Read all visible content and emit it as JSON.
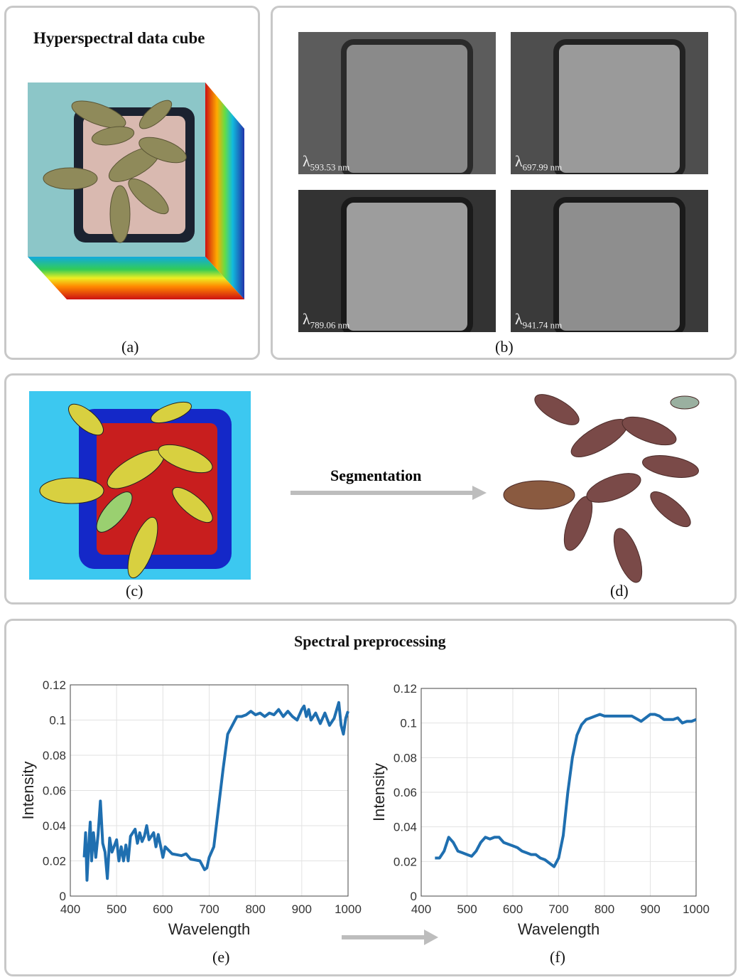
{
  "panel_a": {
    "title": "Hyperspectral data cube",
    "caption": "(a)"
  },
  "panel_b": {
    "caption": "(b)",
    "bands": [
      {
        "symbol": "λ",
        "sub": "593.53 nm"
      },
      {
        "symbol": "λ",
        "sub": "697.99 nm"
      },
      {
        "symbol": "λ",
        "sub": "789.06 nm"
      },
      {
        "symbol": "λ",
        "sub": "941.74 nm"
      }
    ]
  },
  "panel_cd": {
    "arrow_label": "Segmentation",
    "caption_c": "(c)",
    "caption_d": "(d)"
  },
  "panel_ef": {
    "title": "Spectral preprocessing",
    "caption_e": "(e)",
    "caption_f": "(f)"
  },
  "colors": {
    "line": "#1f6fb0",
    "arrow": "#bdbdbd"
  },
  "chart_data": [
    {
      "type": "line",
      "id": "e",
      "xlabel": "Wavelength",
      "ylabel": "Intensity",
      "xlim": [
        400,
        1000
      ],
      "ylim": [
        0,
        0.12
      ],
      "grid": true,
      "xticks": [
        "400",
        "500",
        "600",
        "700",
        "800",
        "900",
        "1000"
      ],
      "yticks": [
        "0",
        "0.02",
        "0.04",
        "0.06",
        "0.08",
        "0.1",
        "0.12"
      ],
      "x": [
        430,
        433,
        436,
        440,
        443,
        446,
        450,
        455,
        460,
        465,
        470,
        475,
        480,
        485,
        490,
        500,
        505,
        510,
        515,
        520,
        525,
        530,
        540,
        545,
        550,
        555,
        560,
        565,
        570,
        580,
        585,
        590,
        600,
        605,
        620,
        640,
        650,
        660,
        680,
        690,
        695,
        700,
        710,
        720,
        730,
        740,
        750,
        760,
        770,
        780,
        790,
        800,
        810,
        820,
        830,
        840,
        850,
        860,
        870,
        880,
        890,
        900,
        905,
        910,
        915,
        920,
        930,
        940,
        950,
        960,
        970,
        980,
        985,
        990,
        995,
        1000
      ],
      "y": [
        0.022,
        0.036,
        0.009,
        0.03,
        0.042,
        0.02,
        0.036,
        0.022,
        0.035,
        0.054,
        0.03,
        0.025,
        0.01,
        0.033,
        0.025,
        0.032,
        0.02,
        0.028,
        0.02,
        0.029,
        0.02,
        0.034,
        0.038,
        0.03,
        0.036,
        0.031,
        0.034,
        0.04,
        0.032,
        0.036,
        0.028,
        0.035,
        0.022,
        0.028,
        0.024,
        0.023,
        0.024,
        0.021,
        0.02,
        0.015,
        0.016,
        0.022,
        0.028,
        0.05,
        0.072,
        0.092,
        0.097,
        0.102,
        0.102,
        0.103,
        0.105,
        0.103,
        0.104,
        0.102,
        0.104,
        0.103,
        0.106,
        0.102,
        0.105,
        0.102,
        0.1,
        0.106,
        0.108,
        0.102,
        0.106,
        0.1,
        0.104,
        0.098,
        0.104,
        0.097,
        0.101,
        0.11,
        0.097,
        0.092,
        0.101,
        0.105
      ]
    },
    {
      "type": "line",
      "id": "f",
      "xlabel": "Wavelength",
      "ylabel": "Intensity",
      "xlim": [
        400,
        1000
      ],
      "ylim": [
        0,
        0.12
      ],
      "grid": true,
      "xticks": [
        "400",
        "500",
        "600",
        "700",
        "800",
        "900",
        "1000"
      ],
      "yticks": [
        "0",
        "0.02",
        "0.04",
        "0.06",
        "0.08",
        "0.1",
        "0.12"
      ],
      "x": [
        430,
        440,
        450,
        460,
        470,
        480,
        490,
        500,
        510,
        520,
        530,
        540,
        550,
        560,
        570,
        580,
        590,
        600,
        610,
        620,
        630,
        640,
        650,
        660,
        670,
        680,
        690,
        700,
        710,
        720,
        730,
        740,
        750,
        760,
        770,
        780,
        790,
        800,
        820,
        840,
        860,
        880,
        890,
        900,
        910,
        920,
        930,
        940,
        950,
        960,
        970,
        980,
        990,
        1000
      ],
      "y": [
        0.022,
        0.022,
        0.026,
        0.034,
        0.031,
        0.026,
        0.025,
        0.024,
        0.023,
        0.026,
        0.031,
        0.034,
        0.033,
        0.034,
        0.034,
        0.031,
        0.03,
        0.029,
        0.028,
        0.026,
        0.025,
        0.024,
        0.024,
        0.022,
        0.021,
        0.019,
        0.017,
        0.022,
        0.035,
        0.06,
        0.08,
        0.093,
        0.099,
        0.102,
        0.103,
        0.104,
        0.105,
        0.104,
        0.104,
        0.104,
        0.104,
        0.101,
        0.103,
        0.105,
        0.105,
        0.104,
        0.102,
        0.102,
        0.102,
        0.103,
        0.1,
        0.101,
        0.101,
        0.102
      ]
    }
  ]
}
